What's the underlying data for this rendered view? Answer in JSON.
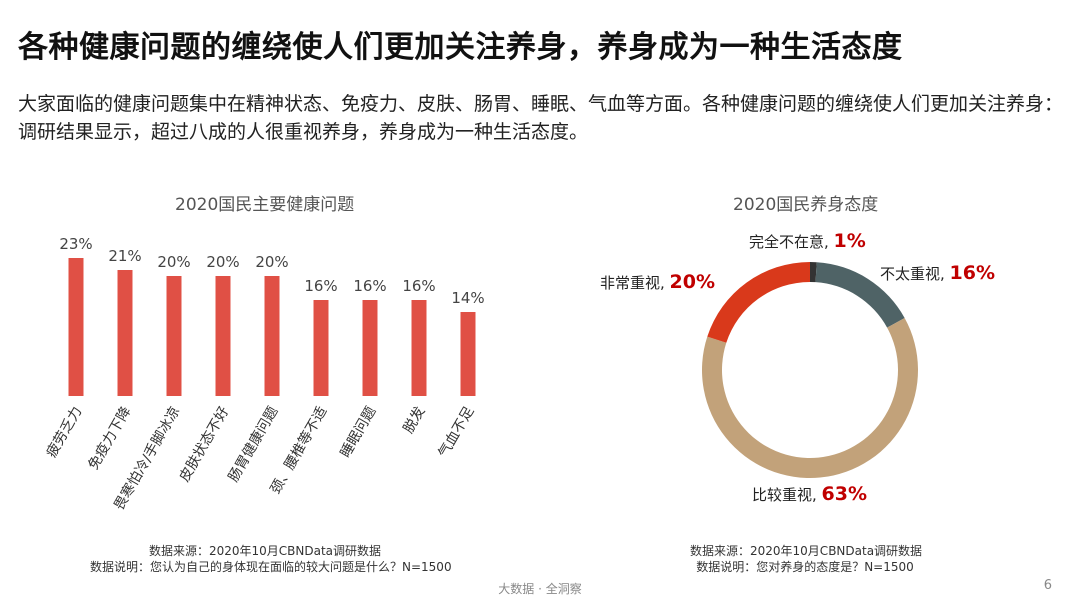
{
  "header": {
    "title": "各种健康问题的缠绕使人们更加关注养身，养身成为一种生活态度",
    "description": "大家面临的健康问题集中在精神状态、免疫力、皮肤、肠胃、睡眠、气血等方面。各种健康问题的缠绕使人们更加关注养身：调研结果显示，超过八成的人很重视养身，养身成为一种生活态度。"
  },
  "bar_source": {
    "line1": "数据来源：2020年10月CBNData调研数据",
    "line2": "数据说明：您认为自己的身体现在面临的较大问题是什么？N=1500"
  },
  "donut_source": {
    "line1": "数据来源：2020年10月CBNData调研数据",
    "line2": "数据说明：您对养身的态度是？N=1500"
  },
  "footer": {
    "text": "大数据 · 全洞察",
    "page": "6"
  },
  "chart_data": [
    {
      "type": "bar",
      "title": "2020国民主要健康问题",
      "categories": [
        "疲劳乏力",
        "免疫力下降",
        "畏寒怕冷/手脚冰凉",
        "皮肤状态不好",
        "肠胃健康问题",
        "颈、腰椎等不适",
        "睡眠问题",
        "脱发",
        "气血不足"
      ],
      "values": [
        23,
        21,
        20,
        20,
        20,
        16,
        16,
        16,
        14
      ],
      "value_labels": [
        "23%",
        "21%",
        "20%",
        "20%",
        "20%",
        "16%",
        "16%",
        "16%",
        "14%"
      ],
      "ylim": [
        0,
        25
      ],
      "grid": false,
      "color": "#e05045"
    },
    {
      "type": "pie",
      "style": "donut",
      "title": "2020国民养身态度",
      "slices": [
        {
          "name": "完全不在意,",
          "value": 1,
          "label": "1%",
          "color": "#333333"
        },
        {
          "name": "不太重视,",
          "value": 16,
          "label": "16%",
          "color": "#4f6366"
        },
        {
          "name": "比较重视,",
          "value": 63,
          "label": "63%",
          "color": "#c2a27a"
        },
        {
          "name": "非常重视,",
          "value": 20,
          "label": "20%",
          "color": "#d9391b"
        }
      ]
    }
  ]
}
